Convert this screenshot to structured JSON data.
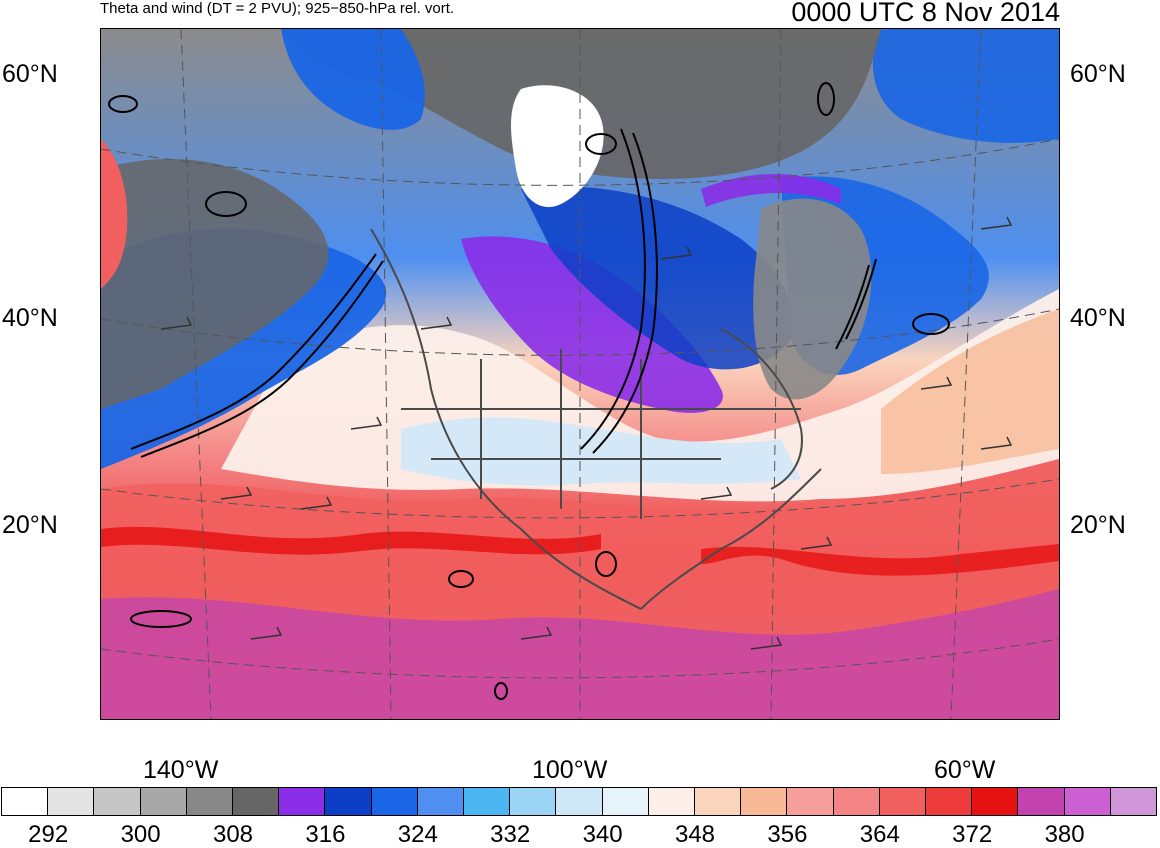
{
  "header": {
    "subtitle": "Theta and wind (DT = 2 PVU); 925−850-hPa rel. vort.",
    "datetime": "0000 UTC 8 Nov 2014"
  },
  "map": {
    "lat_labels": [
      "60°N",
      "40°N",
      "20°N"
    ],
    "lon_labels": [
      "140°W",
      "100°W",
      "60°W"
    ],
    "colors": {
      "land_boundaries": "#4a4a4a",
      "vorticity_contours": "#000000"
    }
  },
  "colorbar": {
    "colors": [
      "#ffffff",
      "#e4e4e4",
      "#c6c6c6",
      "#a8a8a8",
      "#888888",
      "#666666",
      "#8a2ee8",
      "#0c3fc6",
      "#1a66e6",
      "#4e8ff0",
      "#4cb6f2",
      "#9cd4f6",
      "#cfe8f8",
      "#e5f3fb",
      "#fcefe9",
      "#fad4bd",
      "#f8b996",
      "#f7a09b",
      "#f48585",
      "#f1605f",
      "#ee3c3c",
      "#e61212",
      "#c243b0",
      "#cc5fd2",
      "#cf97d7"
    ],
    "labels": [
      "292",
      "300",
      "308",
      "316",
      "324",
      "332",
      "340",
      "348",
      "356",
      "364",
      "372",
      "380"
    ]
  }
}
